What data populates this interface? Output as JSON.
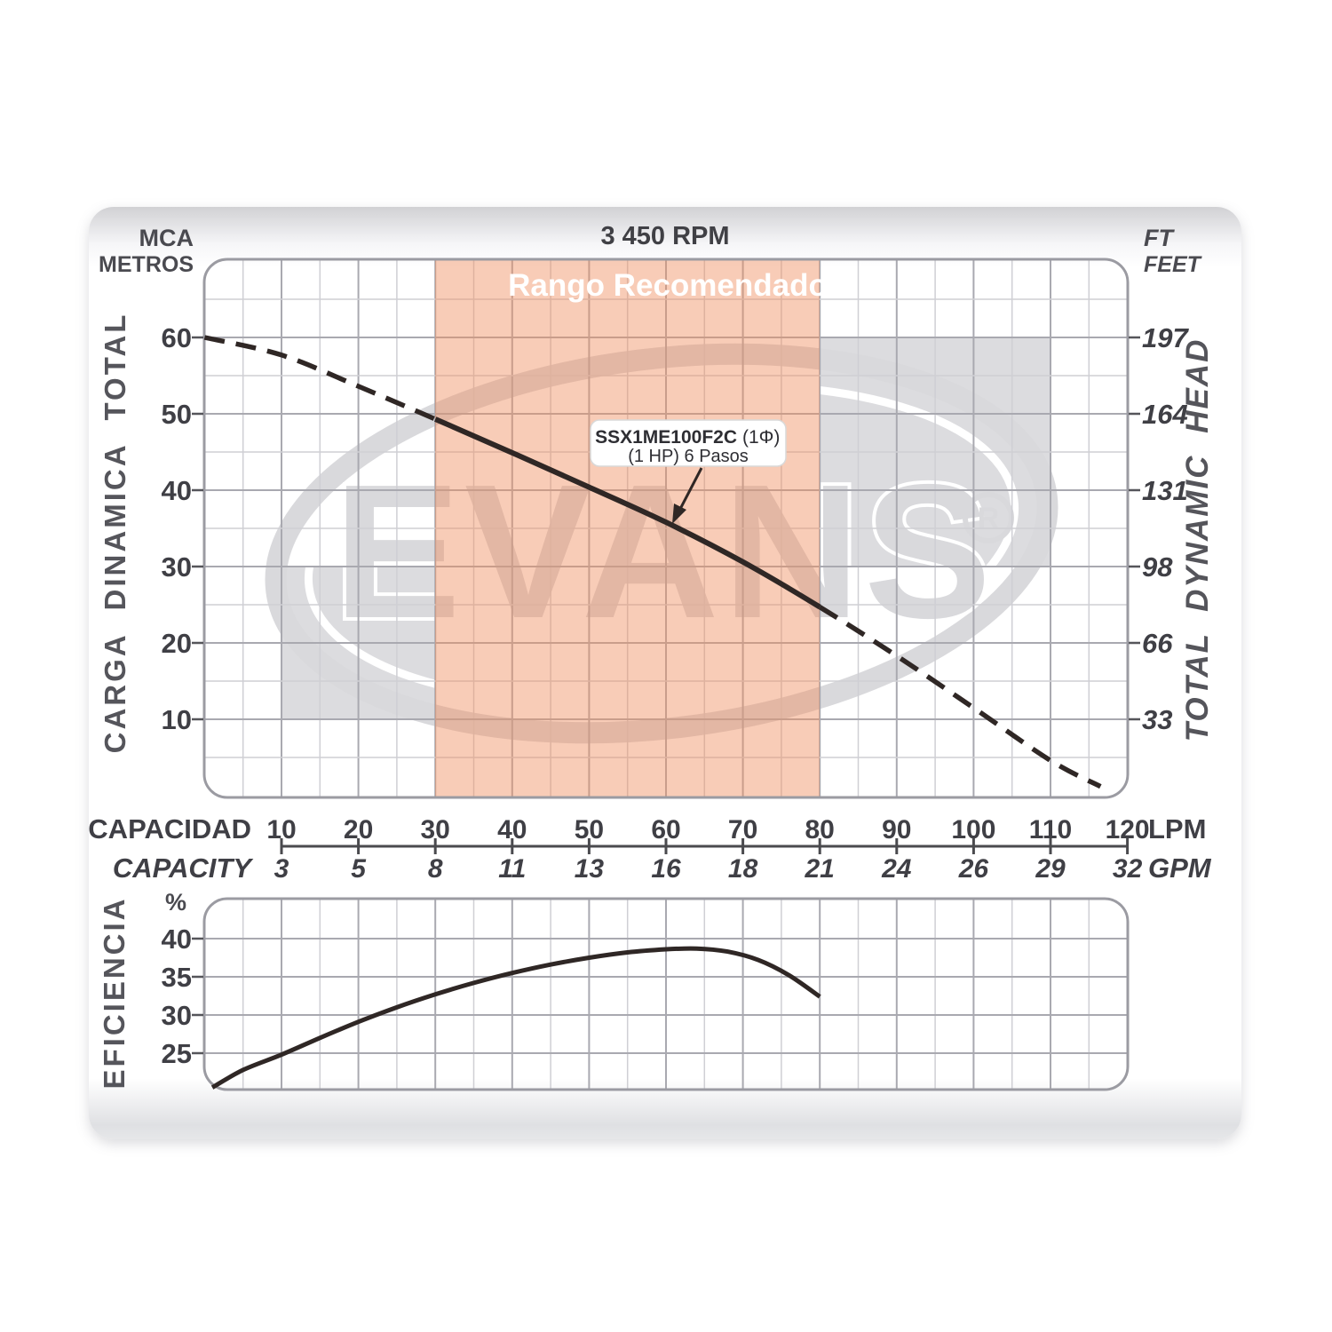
{
  "title": "3 450 RPM",
  "recommended_range_label": "Rango Recomendado",
  "pump_label": {
    "model": "SSX1ME100F2C",
    "phase": "(1Φ)",
    "line2": "(1 HP)  6 Pasos"
  },
  "watermark": {
    "text": "EVANS",
    "registered": "R"
  },
  "left_axis": {
    "unit_top": "MCA",
    "unit_bottom": "METROS",
    "title": "CARGA DINAMICA TOTAL",
    "ticks": [
      60,
      50,
      40,
      30,
      20,
      10
    ]
  },
  "right_axis": {
    "unit_top": "FT",
    "unit_bottom": "FEET",
    "title": "TOTAL DYNAMIC HEAD",
    "ticks": [
      197,
      164,
      131,
      98,
      66,
      33
    ]
  },
  "capacity_axis": {
    "label_lpm": "CAPACIDAD",
    "unit_lpm": "LPM",
    "label_gpm": "CAPACITY",
    "unit_gpm": "GPM",
    "lpm_ticks": [
      10,
      20,
      30,
      40,
      50,
      60,
      70,
      80,
      90,
      100,
      110,
      120
    ],
    "gpm_ticks": [
      3,
      5,
      8,
      11,
      13,
      16,
      18,
      21,
      24,
      26,
      29,
      32
    ]
  },
  "efficiency_axis": {
    "title": "EFICIENCIA",
    "unit": "%",
    "ticks": [
      40,
      35,
      30,
      25
    ]
  },
  "colors": {
    "recommended_band": "rgba(240,141,96,0.45)",
    "grey_zone": "#dcdcdf",
    "watermark_grey": "#d9d9dc",
    "curve": "#2f2725",
    "grid_major": "#a9a9b0",
    "grid_minor": "#cfcfd4",
    "text_dark": "#3f3f45"
  },
  "chart_data": [
    {
      "type": "line",
      "name": "head-capacity-curve",
      "title": "3 450 RPM",
      "xlabel": "CAPACIDAD / CAPACITY",
      "ylabel_left": "CARGA DINAMICA TOTAL (MCA METROS)",
      "ylabel_right": "TOTAL DYNAMIC HEAD (FT FEET)",
      "x_unit": "LPM",
      "y_unit": "m",
      "xlim": [
        0,
        120
      ],
      "ylim": [
        0,
        70
      ],
      "grid": true,
      "recommended_range_lpm": [
        30,
        80
      ],
      "grey_zones": [
        {
          "lpm": [
            10,
            30
          ],
          "m": [
            10,
            30
          ]
        },
        {
          "lpm": [
            80,
            110
          ],
          "m": [
            30,
            60
          ]
        }
      ],
      "series": [
        {
          "name": "SSX1ME100F2C (1Φ) (1 HP) 6 Pasos",
          "solid_range_lpm": [
            30,
            80
          ],
          "points": [
            [
              0,
              60
            ],
            [
              10,
              57.7
            ],
            [
              20,
              53.6
            ],
            [
              30,
              49.3
            ],
            [
              40,
              44.9
            ],
            [
              50,
              40.4
            ],
            [
              60,
              35.8
            ],
            [
              70,
              30.6
            ],
            [
              80,
              24.7
            ],
            [
              90,
              18.3
            ],
            [
              100,
              11.5
            ],
            [
              110,
              4.6
            ],
            [
              116.5,
              1.2
            ]
          ]
        }
      ]
    },
    {
      "type": "line",
      "name": "efficiency-curve",
      "xlabel": "CAPACIDAD LPM",
      "ylabel": "EFICIENCIA %",
      "xlim": [
        0,
        120
      ],
      "ylim": [
        20,
        45
      ],
      "grid": true,
      "series": [
        {
          "name": "eficiencia",
          "points": [
            [
              1,
              20.5
            ],
            [
              5,
              22.8
            ],
            [
              10,
              24.8
            ],
            [
              15,
              27.0
            ],
            [
              20,
              29.1
            ],
            [
              25,
              31.0
            ],
            [
              30,
              32.7
            ],
            [
              35,
              34.2
            ],
            [
              40,
              35.5
            ],
            [
              45,
              36.6
            ],
            [
              50,
              37.5
            ],
            [
              55,
              38.2
            ],
            [
              60,
              38.6
            ],
            [
              64,
              38.7
            ],
            [
              68,
              38.3
            ],
            [
              72,
              37.2
            ],
            [
              76,
              35.2
            ],
            [
              80,
              32.4
            ]
          ]
        }
      ]
    }
  ]
}
